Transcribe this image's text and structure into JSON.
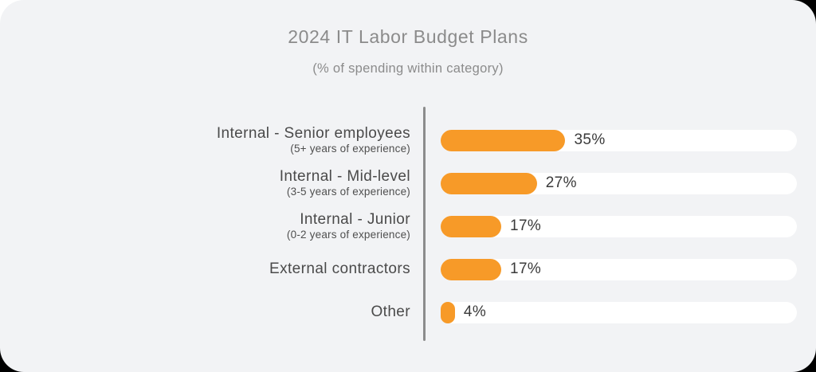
{
  "header": {
    "title": "2024 IT Labor Budget Plans",
    "subtitle": "(% of spending within category)"
  },
  "chart_data": {
    "type": "bar",
    "orientation": "horizontal",
    "title": "2024 IT Labor Budget Plans",
    "subtitle": "(% of spending within category)",
    "categories": [
      "Internal - Senior employees",
      "Internal - Mid-level",
      "Internal - Junior",
      "External contractors",
      "Other"
    ],
    "category_sublabels": [
      "(5+ years of experience)",
      "(3-5 years of experience)",
      "(0-2 years of experience)",
      "",
      ""
    ],
    "values": [
      35,
      27,
      17,
      17,
      4
    ],
    "value_labels": [
      "35%",
      "27%",
      "17%",
      "17%",
      "4%"
    ],
    "xlim": [
      0,
      100
    ],
    "grid": false,
    "legend": false,
    "colors": {
      "bar_fill": "#F79A28",
      "bar_track": "#FFFFFF",
      "card_background": "#F2F3F5",
      "axis_line": "#8C8C8C",
      "title_text": "#8B8B8B",
      "label_text": "#4A4A4A",
      "value_text": "#3A3A3A"
    }
  }
}
